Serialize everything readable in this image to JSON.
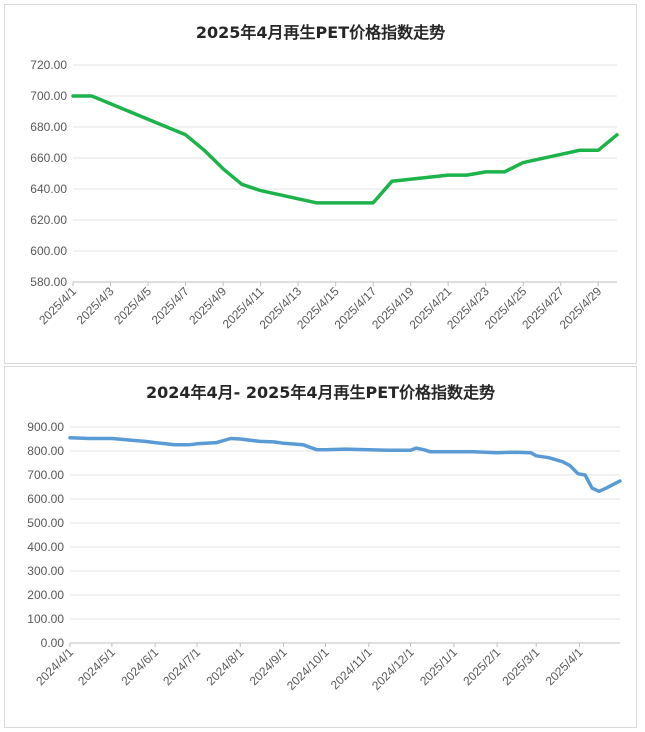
{
  "chart_data": [
    {
      "type": "line",
      "title": "2025年4月再生PET价格指数走势",
      "color": "#1db34b",
      "ylim": [
        580,
        720
      ],
      "yticks": [
        "580.00",
        "600.00",
        "620.00",
        "640.00",
        "660.00",
        "680.00",
        "700.00",
        "720.00"
      ],
      "yticks_values": [
        580,
        600,
        620,
        640,
        660,
        680,
        700,
        720
      ],
      "grid": true,
      "xlabels": [
        "2025/4/1",
        "2025/4/3",
        "2025/4/5",
        "2025/4/7",
        "2025/4/9",
        "2025/4/11",
        "2025/4/13",
        "2025/4/15",
        "2025/4/17",
        "2025/4/19",
        "2025/4/21",
        "2025/4/23",
        "2025/4/25",
        "2025/4/27",
        "2025/4/29"
      ],
      "x": [
        "2025/4/1",
        "2025/4/2",
        "2025/4/7",
        "2025/4/8",
        "2025/4/9",
        "2025/4/10",
        "2025/4/11",
        "2025/4/14",
        "2025/4/15",
        "2025/4/16",
        "2025/4/17",
        "2025/4/18",
        "2025/4/21",
        "2025/4/22",
        "2025/4/23",
        "2025/4/24",
        "2025/4/25",
        "2025/4/28",
        "2025/4/29",
        "2025/4/30"
      ],
      "values": [
        700,
        700,
        675,
        665,
        653,
        643,
        639,
        631,
        631,
        631,
        631,
        645,
        649,
        649,
        651,
        651,
        657,
        665,
        665,
        675
      ]
    },
    {
      "type": "line",
      "title": "2024年4月- 2025年4月再生PET价格指数走势",
      "color": "#5b9bd5",
      "ylim": [
        0,
        900
      ],
      "yticks": [
        "0.00",
        "100.00",
        "200.00",
        "300.00",
        "400.00",
        "500.00",
        "600.00",
        "700.00",
        "800.00",
        "900.00"
      ],
      "yticks_values": [
        0,
        100,
        200,
        300,
        400,
        500,
        600,
        700,
        800,
        900
      ],
      "grid": true,
      "xlabels": [
        "2024/4/1",
        "2024/5/1",
        "2024/6/1",
        "2024/7/1",
        "2024/8/1",
        "2024/9/1",
        "2024/10/1",
        "2024/11/1",
        "2024/12/1",
        "2025/1/1",
        "2025/2/1",
        "2025/3/1",
        "2025/4/1"
      ],
      "x": [
        "2024/4/1",
        "2024/4/15",
        "2024/5/1",
        "2024/5/15",
        "2024/5/25",
        "2024/6/1",
        "2024/6/15",
        "2024/6/25",
        "2024/7/1",
        "2024/7/15",
        "2024/7/25",
        "2024/8/1",
        "2024/8/15",
        "2024/8/25",
        "2024/9/1",
        "2024/9/15",
        "2024/9/25",
        "2024/10/1",
        "2024/10/15",
        "2024/11/1",
        "2024/11/15",
        "2024/12/1",
        "2024/12/5",
        "2024/12/10",
        "2024/12/15",
        "2025/1/1",
        "2025/1/15",
        "2025/2/1",
        "2025/2/15",
        "2025/2/25",
        "2025/3/1",
        "2025/3/10",
        "2025/3/20",
        "2025/3/25",
        "2025/3/31",
        "2025/4/5",
        "2025/4/10",
        "2025/4/15",
        "2025/4/20",
        "2025/4/25",
        "2025/4/30"
      ],
      "values": [
        855,
        852,
        852,
        845,
        840,
        835,
        826,
        826,
        830,
        835,
        852,
        850,
        840,
        838,
        832,
        826,
        805,
        805,
        808,
        805,
        803,
        803,
        812,
        806,
        797,
        797,
        797,
        793,
        795,
        793,
        780,
        772,
        755,
        740,
        705,
        700,
        645,
        632,
        645,
        660,
        675
      ]
    }
  ]
}
